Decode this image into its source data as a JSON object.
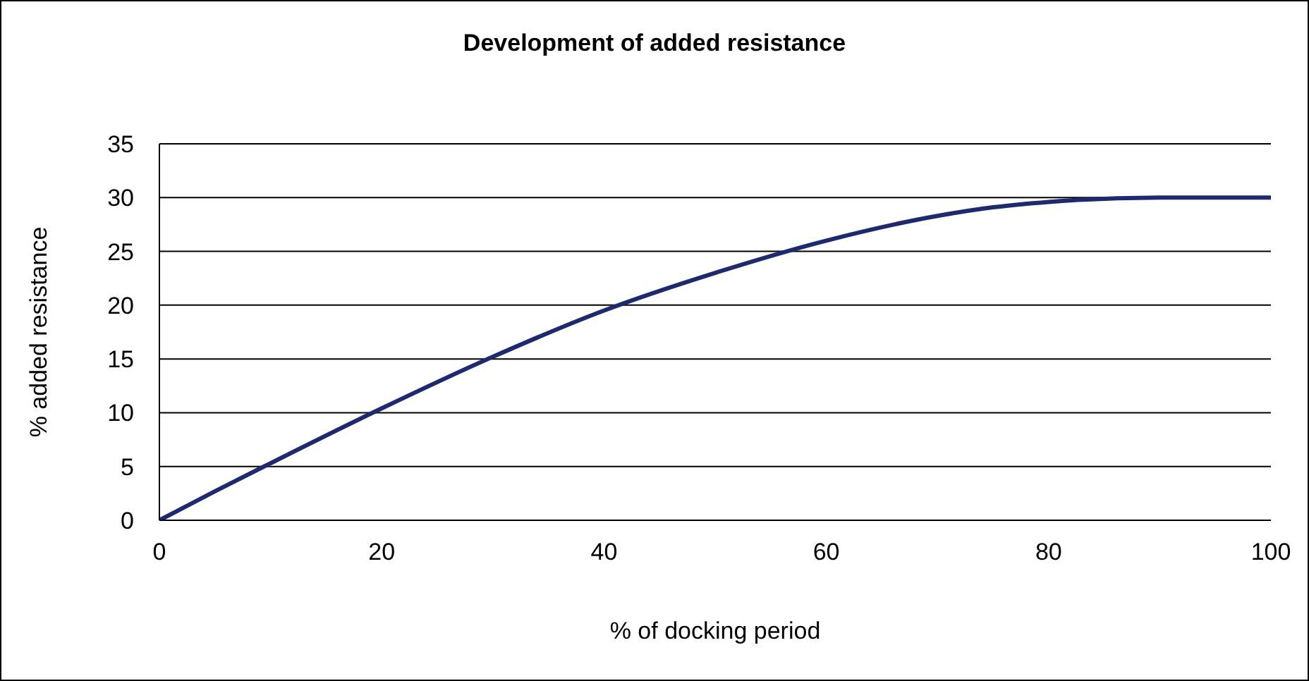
{
  "chart_data": {
    "type": "line",
    "title": "Development of added resistance",
    "xlabel": "% of docking period",
    "ylabel": "% added resistance",
    "x": [
      0,
      5,
      10,
      20,
      30,
      40,
      50,
      60,
      70,
      75,
      80,
      90,
      100
    ],
    "series": [
      {
        "color": "#1f2a6e",
        "values": [
          0,
          2.7,
          5.3,
          10.4,
          15.2,
          19.5,
          23,
          26,
          28.3,
          29.1,
          29.6,
          30,
          30
        ]
      }
    ],
    "xlim": [
      0,
      100
    ],
    "xticks": [
      0,
      20,
      40,
      60,
      80,
      100
    ],
    "ylim": [
      0,
      35
    ],
    "yticks": [
      0,
      5,
      10,
      15,
      20,
      25,
      30,
      35
    ],
    "grid": "y",
    "marker": "none",
    "line_style": "solid"
  }
}
